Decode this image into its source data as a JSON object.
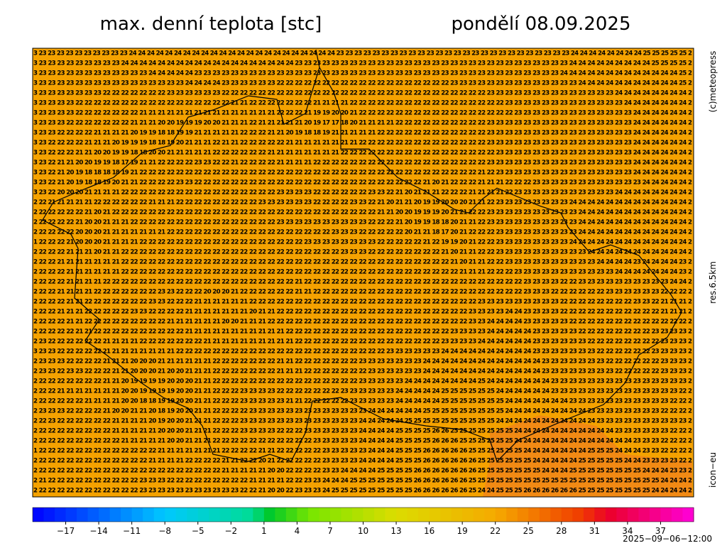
{
  "header": {
    "title": "max. denní teplota [stc]",
    "date": "pondělí 08.09.2025"
  },
  "side_labels": {
    "copyright": "(c)meteopress",
    "resolution": "res.6.5km",
    "model": "icon−eu"
  },
  "timestamp": "2025−09−06−12:00",
  "grid": {
    "rows": [
      "3 23 23 23 23 23 23 23 23 23 23 24 24 24 24 24 24 24 24 24 24 24 24 24 24 24 24 24 24 24 24 24 24 24 23 23 23 23 23 23 23 23 23 23 23 23 23 23 23 23 23 23 23 23 23 23 23 23 23 23 24 24 24 24 24 24 24 24 25 25 25 25 25 2",
      "3 23 23 23 23 23 23 23 23 23 24 24 24 24 24 24 24 24 24 24 24 24 24 24 24 24 24 24 24 23 23 23 23 23 23 23 23 23 23 23 23 23 23 23 23 23 23 23 23 23 23 23 23 23 23 23 23 23 23 24 24 24 24 24 24 24 24 24 25 25 25 25 2",
      "3 23 23 23 23 23 23 23 23 23 23 23 23 24 24 24 24 24 23 23 23 23 23 23 23 23 23 23 23 23 23 23 23 23 23 23 23 23 23 23 23 23 23 23 23 23 23 23 23 23 23 23 23 23 23 23 23 23 24 24 24 24 24 24 24 24 24 24 24 24 24 25 2",
      "3 23 23 23 23 23 23 23 23 23 23 23 23 23 23 23 23 24 24 24 24 23 23 23 23 23 23 22 22 22 22 22 22 22 22 22 22 22 22 22 22 22 22 22 22 22 23 23 23 23 23 23 23 23 23 23 23 23 23 23 24 24 24 24 24 24 24 24 24 24 24 25 2",
      "3 23 23 23 23 23 23 23 22 22 22 22 22 22 22 23 23 23 23 23 23 22 22 22 22 22 22 22 22 22 22 22 22 22 22 22 22 22 22 22 22 22 22 22 22 22 22 22 22 22 23 23 23 23 23 23 23 23 23 23 23 23 23 23 24 24 24 24 24 24 24 24 2",
      "3 23 23 23 23 22 22 22 22 22 22 22 22 22 22 22 22 22 22 22 22 22 21 21 22 22 22 22 22 22 22 21 21 21 21 22 22 22 22 22 22 22 22 22 22 22 22 22 22 22 22 22 23 23 23 23 23 23 23 23 23 23 23 23 23 24 24 24 24 24 24 24 2",
      "3 23 23 23 23 22 22 22 22 22 22 22 21 21 21 21 21 21 21 21 21 21 21 21 21 21 21 22 22 22 21 19 19 20 20 21 22 22 22 22 22 22 22 22 22 22 22 22 22 22 22 22 22 23 23 23 23 23 23 23 23 23 23 23 23 23 24 24 24 24 24 24 2",
      "3 23 23 23 22 22 22 22 22 22 22 21 21 21 20 20 19 19 19 20 20 21 21 21 22 21 21 21 21 21 20 19 17 17 18 20 21 21 21 21 22 22 22 22 22 22 22 22 22 22 23 23 23 23 23 23 23 23 23 23 23 23 23 23 23 23 24 24 24 24 24 24 2",
      "3 23 23 22 22 22 22 21 21 21 21 20 19 19 18 18 19 19 21 21 21 21 21 22 22 22 21 21 20 19 18 18 19 21 21 21 21 21 22 22 22 22 22 22 22 22 22 22 22 22 23 23 23 23 23 23 23 23 23 23 23 23 23 23 23 23 24 24 24 24 24 24 2",
      "3 23 22 22 22 22 21 21 21 20 19 19 19 18 18 19 20 21 21 21 22 21 21 22 22 22 22 22 21 21 21 21 21 21 21 21 22 22 22 22 22 22 22 22 22 22 22 22 22 22 23 23 23 23 23 23 23 23 23 23 23 23 23 23 23 23 24 24 24 24 24 24 2",
      "3 23 22 22 22 21 21 20 20 19 19 18 18 20 20 21 21 21 21 21 22 22 22 22 22 22 21 21 21 21 21 21 21 21 22 22 22 22 22 22 22 22 22 22 22 22 22 22 22 22 22 23 23 23 23 23 23 23 23 23 23 23 23 23 23 23 24 24 24 24 24 24 2",
      "3 23 22 21 21 20 20 19 19 18 17 19 21 21 22 22 22 22 23 23 22 22 21 22 22 22 22 21 21 21 21 22 22 22 22 22 22 22 22 22 22 22 22 22 22 22 22 22 22 22 23 23 23 23 23 23 23 23 23 23 23 23 23 23 23 23 24 24 24 24 24 24 2",
      "3 23 22 21 20 19 18 18 18 18 19 21 22 22 22 22 22 22 22 22 22 22 22 22 22 22 22 22 22 22 22 22 22 22 22 22 22 22 22 22 22 22 22 22 22 22 22 22 22 21 22 23 23 23 23 23 23 23 23 23 23 23 23 23 23 23 24 24 24 24 24 24 2",
      "3 23 22 21 20 19 18 18 19 20 21 21 22 22 22 22 23 23 22 22 22 22 22 22 22 22 22 22 22 22 22 22 22 22 22 22 22 22 22 22 22 22 22 21 20 21 22 22 22 21 21 21 22 22 22 23 23 23 23 23 23 23 23 23 23 23 23 24 24 24 24 24 2",
      "3 23 22 20 20 20 21 21 21 21 22 22 22 22 22 22 22 22 22 22 22 22 22 22 22 22 22 23 23 23 23 22 22 22 22 22 22 23 23 22 21 20 21 21 21 22 22 22 21 21 21 21 22 23 23 23 23 23 23 23 23 23 23 23 24 24 24 24 24 24 24 24 2",
      "2 22 21 21 21 21 21 22 22 22 22 22 22 21 21 21 22 22 22 22 22 22 22 22 22 23 23 23 23 23 23 22 22 22 22 23 23 22 21 20 21 21 20 19 19 20 20 20 21 21 22 23 23 23 23 23 23 23 23 24 24 24 24 24 24 24 24 24 24 24 24 24 2",
      "2 22 22 22 22 22 21 20 21 22 22 22 22 22 22 22 22 22 22 22 22 22 22 22 22 22 22 22 22 22 22 22 22 22 22 22 22 22 21 21 20 20 19 19 19 20 21 21 22 22 23 23 23 23 23 23 23 23 23 23 24 24 24 24 24 24 24 24 24 24 24 24 2",
      "2 22 22 22 22 21 20 20 21 21 21 22 22 22 22 22 22 22 22 22 22 22 22 22 22 22 22 23 23 23 23 23 23 23 23 23 23 22 22 22 21 20 19 19 18 18 20 21 21 22 23 23 23 23 23 23 23 23 23 23 24 24 24 24 24 24 24 24 24 24 24 24 2",
      "2 22 22 22 22 20 20 20 21 21 21 21 21 21 21 22 22 22 22 22 22 22 22 22 22 22 22 22 22 22 22 22 22 23 23 23 22 22 22 22 22 20 21 21 18 17 20 21 22 22 22 23 23 23 23 23 23 23 23 23 24 24 24 24 24 24 24 24 24 24 24 24 2",
      "1 22 22 22 21 20 20 20 21 21 21 21 22 22 22 22 22 22 22 22 22 22 22 22 22 22 22 22 22 22 23 23 23 23 23 23 23 23 22 22 22 22 22 21 22 19 19 20 21 22 22 23 23 23 23 23 23 23 23 24 24 24 24 24 24 24 24 24 24 24 24 24 2",
      "2 22 22 22 21 21 21 20 21 21 22 22 22 22 22 22 22 22 22 22 22 22 22 22 22 22 22 22 22 22 22 22 22 22 23 23 23 22 22 22 22 22 22 22 22 21 20 21 21 22 22 23 23 23 23 23 23 23 23 23 23 24 24 24 24 24 24 24 24 24 24 24 2",
      "2 22 22 21 21 21 21 21 21 21 22 22 22 22 22 22 22 22 22 22 22 22 22 22 22 22 22 22 22 22 22 22 22 22 22 22 22 22 22 22 22 22 22 22 22 22 21 20 21 21 22 22 23 23 23 23 23 23 23 23 23 23 24 24 24 24 23 24 24 24 24 23 2",
      "2 22 22 22 21 21 21 21 21 21 22 22 22 22 22 22 22 22 22 22 22 22 22 22 22 22 22 22 22 22 22 22 22 22 22 22 22 22 22 22 22 22 22 22 22 22 22 21 21 21 22 22 22 23 23 23 23 23 23 23 23 23 23 23 24 24 24 24 24 24 24 23 2",
      "2 22 22 22 21 21 21 21 22 22 22 22 22 22 22 22 22 22 22 22 22 22 22 22 22 22 22 22 22 21 22 22 22 22 22 22 22 22 22 22 22 22 22 22 22 22 22 22 22 22 22 22 22 22 23 23 23 23 22 22 23 23 23 23 23 23 23 23 23 23 24 24 2",
      "2 22 22 21 21 21 21 22 22 22 22 22 22 22 23 23 22 22 22 20 20 20 21 22 22 22 22 22 22 21 21 22 22 22 22 22 22 22 22 22 22 22 22 22 22 22 22 22 22 22 22 22 22 22 23 23 23 22 22 22 22 22 22 23 23 23 23 23 23 22 22 22 2",
      "2 22 22 22 21 21 22 22 22 22 22 22 22 23 23 22 22 22 21 21 21 21 21 21 22 22 22 22 22 22 22 22 22 22 22 22 22 22 22 22 22 22 22 22 22 22 22 22 22 23 23 23 23 23 23 23 23 23 22 22 22 22 22 22 22 22 23 23 22 21 21 21 2",
      "2 22 22 21 21 21 22 22 22 22 22 23 23 22 22 22 22 21 21 21 21 21 21 21 20 21 21 22 22 22 22 22 22 22 22 22 22 22 22 22 22 22 22 22 22 22 22 22 23 23 23 23 24 24 23 23 23 23 22 22 22 22 22 22 22 22 22 22 22 21 21 21 2",
      "2 22 22 22 21 21 22 22 22 22 22 22 22 22 22 21 21 21 21 21 21 20 20 21 21 21 22 22 22 22 22 22 22 22 22 22 22 22 22 22 22 22 22 22 22 22 22 22 23 23 24 24 24 24 23 23 23 23 23 22 22 22 22 22 22 22 22 22 22 22 22 22 2",
      "2 22 22 22 22 21 21 22 22 22 22 22 22 22 22 22 22 21 21 21 21 21 21 21 21 21 21 21 22 22 22 22 22 22 22 22 22 22 22 22 22 22 22 22 22 22 23 23 23 23 24 24 24 24 24 23 23 23 23 23 22 22 22 22 22 22 22 22 23 23 23 23 2",
      "2 23 22 22 22 22 22 22 21 21 21 21 22 22 22 22 22 22 22 21 21 21 21 21 21 21 21 21 21 22 22 22 22 22 22 22 22 22 22 22 22 22 22 22 22 23 23 23 23 24 24 24 24 24 24 23 23 23 23 23 23 22 22 22 22 22 22 22 22 23 23 23 2",
      "3 23 23 22 22 22 22 22 21 21 21 21 21 21 21 21 22 22 22 22 22 22 22 22 22 22 22 22 22 22 22 22 22 22 22 22 22 22 22 23 23 23 23 23 23 24 24 24 24 24 24 24 24 24 24 23 23 23 23 23 23 23 22 22 22 22 22 22 23 23 23 23 2",
      "2 23 23 23 22 22 22 22 21 21 21 20 20 20 21 21 21 21 21 21 22 22 22 22 22 22 22 21 21 22 22 22 22 22 22 22 23 23 23 23 23 23 23 24 24 24 24 24 24 24 24 24 24 24 24 24 23 23 23 23 23 23 23 22 22 22 22 22 22 23 23 23 2",
      "2 23 23 22 23 23 22 22 22 21 21 20 20 20 21 20 20 21 21 21 22 22 22 22 22 22 22 21 21 21 22 22 22 22 22 22 22 23 23 23 23 23 23 24 24 24 24 24 24 24 24 24 24 24 24 24 23 23 23 23 23 23 23 23 22 22 22 22 22 23 23 23 2",
      "2 22 22 22 22 22 22 22 21 21 20 19 19 19 19 20 20 20 21 21 22 22 22 22 22 22 22 22 22 22 22 22 22 22 22 22 23 23 23 23 23 24 24 24 24 24 24 24 24 25 24 24 24 24 24 24 24 23 23 23 23 23 23 23 23 23 23 23 23 23 23 23 2",
      "2 22 22 21 21 21 21 21 21 21 20 20 19 19 19 19 20 20 21 21 22 22 22 23 23 23 23 22 22 22 22 22 22 22 23 23 23 23 23 23 24 24 24 24 24 25 25 25 25 25 25 24 24 24 24 24 24 23 23 23 23 23 23 23 23 23 23 23 23 23 23 22 2",
      "2 22 22 22 22 22 21 21 21 21 20 20 18 18 19 19 20 20 21 21 22 22 22 23 23 23 23 23 21 21 22 22 22 22 22 23 23 23 23 23 24 24 24 24 24 25 25 25 25 25 25 25 24 24 24 24 24 24 24 23 23 23 23 23 23 23 23 23 23 23 22 22 2",
      "2 23 23 23 22 22 22 22 21 20 20 21 21 20 18 19 20 20 21 21 22 22 22 22 23 23 23 23 23 23 23 23 23 23 23 23 23 24 24 24 24 24 24 25 25 25 25 25 25 25 25 25 24 24 24 24 24 24 24 24 24 23 23 23 23 23 23 23 23 22 22 22 2",
      "2 22 23 22 22 22 22 22 22 21 21 21 21 20 19 20 20 21 21 21 22 22 22 23 23 23 23 23 23 23 23 23 23 23 23 23 24 24 24 24 24 25 25 25 25 25 25 25 25 25 25 24 24 24 24 24 24 24 24 24 24 24 23 23 23 23 23 23 23 23 23 23 2",
      "2 22 22 22 22 22 22 22 22 21 21 21 21 21 20 20 20 21 21 21 22 22 22 23 23 23 23 22 22 22 23 23 23 23 23 23 24 24 24 24 25 25 25 25 26 26 25 25 25 25 25 25 25 24 24 24 24 24 24 24 24 24 24 24 23 23 23 23 23 23 22 22 2",
      "2 22 22 22 22 22 22 22 22 22 21 21 21 21 21 20 20 21 21 21 22 22 22 22 22 22 22 22 22 22 22 23 23 23 23 23 24 24 24 24 25 25 25 25 26 26 26 25 25 25 25 25 25 24 24 24 24 24 24 24 24 24 24 24 24 24 23 23 23 22 22 22 2",
      "1 22 22 22 22 22 22 22 22 22 22 22 22 22 21 21 21 21 21 21 21 22 22 22 22 21 21 22 22 22 22 22 23 23 23 23 23 24 24 24 25 25 25 26 26 26 26 26 25 25 25 25 25 25 24 24 24 24 24 24 24 25 25 25 24 24 24 23 23 22 22 22 2",
      "2 22 22 22 22 22 22 22 22 22 22 22 22 21 21 21 21 22 22 22 22 21 21 22 22 20 21 22 22 22 22 22 23 23 23 23 24 24 24 24 25 25 25 26 26 26 26 26 26 25 25 25 25 25 25 24 24 24 24 24 25 25 25 25 25 24 24 23 23 23 23 22 2",
      "2 22 22 22 22 22 22 22 22 22 22 22 22 22 22 22 22 22 22 22 22 21 21 21 21 21 20 20 22 22 22 22 23 23 24 24 24 24 25 25 25 25 26 26 26 26 26 26 26 25 25 25 25 25 25 25 24 24 24 25 25 25 25 25 25 25 25 24 24 24 23 23 2",
      "2 21 22 22 22 22 22 22 22 22 22 22 23 23 23 22 22 22 22 22 22 22 22 22 21 21 21 21 22 22 23 23 24 24 24 25 25 25 25 25 25 25 26 26 26 26 26 26 25 25 25 25 25 25 25 25 25 25 25 25 25 25 25 25 25 25 25 25 25 24 24 24 2",
      "2 22 22 22 22 22 22 22 22 22 22 22 23 23 23 23 23 23 23 23 23 23 23 22 22 21 20 20 22 23 23 23 24 25 25 25 25 25 25 25 25 25 26 26 26 26 26 26 25 24 24 25 25 25 26 26 26 26 26 26 25 25 25 25 25 25 25 25 24 24 24 24 2"
    ]
  },
  "colorbar": {
    "range": [
      -20,
      40
    ],
    "ticks": [
      {
        "value": -17,
        "label": "−17"
      },
      {
        "value": -14,
        "label": "−14"
      },
      {
        "value": -11,
        "label": "−11"
      },
      {
        "value": -8,
        "label": "−8"
      },
      {
        "value": -5,
        "label": "−5"
      },
      {
        "value": -2,
        "label": "−2"
      },
      1,
      4,
      7,
      10,
      13,
      16,
      19,
      22,
      25,
      28,
      31,
      34,
      37
    ]
  }
}
